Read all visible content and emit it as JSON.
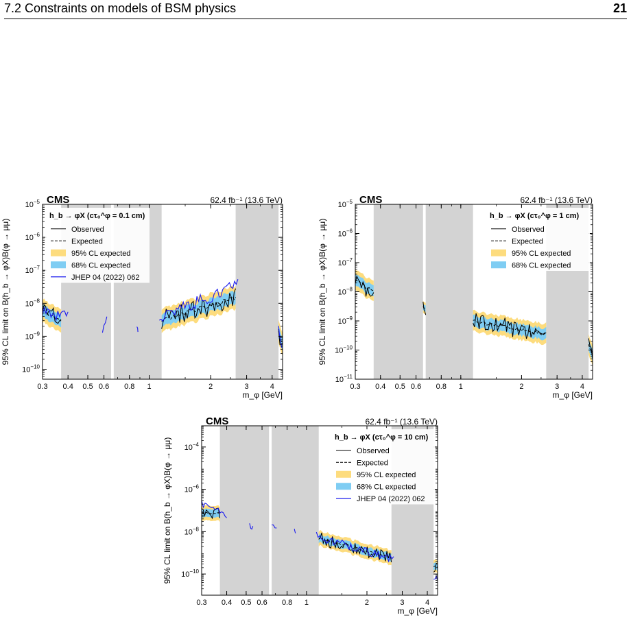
{
  "header": {
    "section": "7.2   Constraints on models of BSM physics",
    "page_number": "21"
  },
  "colors": {
    "band95": "#fddc7e",
    "band68": "#7fcdf3",
    "excluded": "#d3d3d3",
    "observed": "#000000",
    "expected": "#000000",
    "reference": "#1a1aee"
  },
  "chart_data": [
    {
      "type": "line",
      "experiment_label": "CMS",
      "lumi_label": "62.4 fb⁻¹ (13.6 TeV)",
      "xlabel": "m_φ [GeV]",
      "ylabel": "95% CL limit on B(h_b → φX)B(φ → μμ)",
      "xscale": "log",
      "yscale": "log",
      "xlim": [
        0.3,
        4.5
      ],
      "ylim": [
        5e-11,
        1e-05
      ],
      "x_ticks": [
        {
          "v": 0.3,
          "t": "0.3"
        },
        {
          "v": 0.4,
          "t": "0.4"
        },
        {
          "v": 0.5,
          "t": "0.5"
        },
        {
          "v": 0.6,
          "t": "0.6"
        },
        {
          "v": 0.8,
          "t": "0.8"
        },
        {
          "v": 1,
          "t": "1"
        },
        {
          "v": 2,
          "t": "2"
        },
        {
          "v": 3,
          "t": "3"
        },
        {
          "v": 4,
          "t": "4"
        }
      ],
      "y_ticks": [
        {
          "v": 1e-10,
          "e": "−10"
        },
        {
          "v": 1e-09,
          "e": "−9"
        },
        {
          "v": 1e-08,
          "e": "−8"
        },
        {
          "v": 1e-07,
          "e": "−7"
        },
        {
          "v": 1e-06,
          "e": "−6"
        },
        {
          "v": 1e-05,
          "e": "−5"
        }
      ],
      "excluded_regions": [
        [
          0.37,
          0.65
        ],
        [
          0.67,
          1.15
        ],
        [
          2.65,
          4.3
        ]
      ],
      "legend": {
        "placement": "top-left",
        "title": "h_b → φX (cτ₀^φ = 0.1 cm)",
        "entries": [
          {
            "kind": "solid",
            "label": "Observed"
          },
          {
            "kind": "dashed",
            "label": "Expected"
          },
          {
            "kind": "band95",
            "label": "95% CL expected"
          },
          {
            "kind": "band68",
            "label": "68% CL expected"
          },
          {
            "kind": "ref",
            "label": "JHEP 04 (2022) 062"
          }
        ]
      },
      "segments": [
        {
          "x0": 0.3,
          "x1": 0.37,
          "y0": 6e-09,
          "y1": 3e-09,
          "w": 0.35
        },
        {
          "x0": 1.15,
          "x1": 2.65,
          "y0": 3e-09,
          "y1": 1.5e-08,
          "w": 0.35
        },
        {
          "x0": 4.3,
          "x1": 4.5,
          "y0": 1.5e-09,
          "y1": 6e-10,
          "w": 0.35
        }
      ],
      "reference_segments": [
        {
          "x0": 0.3,
          "x1": 0.4,
          "y0": 6e-09,
          "y1": 3.5e-09,
          "w": 0.4
        },
        {
          "x0": 0.59,
          "x1": 0.62,
          "y0": 1.6e-09,
          "y1": 3e-09,
          "w": 0.3
        },
        {
          "x0": 0.87,
          "x1": 0.88,
          "y0": 2.1e-09,
          "y1": 1.5e-09,
          "w": 0.1
        },
        {
          "x0": 1.12,
          "x1": 2.72,
          "y0": 4e-09,
          "y1": 3.5e-08,
          "w": 0.4
        },
        {
          "x0": 4.3,
          "x1": 4.45,
          "y0": 2.5e-09,
          "y1": 5e-10,
          "w": 0.3
        }
      ]
    },
    {
      "type": "line",
      "experiment_label": "CMS",
      "lumi_label": "62.4 fb⁻¹ (13.6 TeV)",
      "xlabel": "m_φ [GeV]",
      "ylabel": "95% CL limit on B(h_b → φX)B(φ → μμ)",
      "xscale": "log",
      "yscale": "log",
      "xlim": [
        0.3,
        4.5
      ],
      "ylim": [
        1e-11,
        1e-05
      ],
      "x_ticks": [
        {
          "v": 0.3,
          "t": "0.3"
        },
        {
          "v": 0.4,
          "t": "0.4"
        },
        {
          "v": 0.5,
          "t": "0.5"
        },
        {
          "v": 0.6,
          "t": "0.6"
        },
        {
          "v": 0.8,
          "t": "0.8"
        },
        {
          "v": 1,
          "t": "1"
        },
        {
          "v": 2,
          "t": "2"
        },
        {
          "v": 3,
          "t": "3"
        },
        {
          "v": 4,
          "t": "4"
        }
      ],
      "y_ticks": [
        {
          "v": 1e-11,
          "e": "−11"
        },
        {
          "v": 1e-10,
          "e": "−10"
        },
        {
          "v": 1e-09,
          "e": "−9"
        },
        {
          "v": 1e-08,
          "e": "−8"
        },
        {
          "v": 1e-07,
          "e": "−7"
        },
        {
          "v": 1e-06,
          "e": "−6"
        },
        {
          "v": 1e-05,
          "e": "−5"
        }
      ],
      "excluded_regions": [
        [
          0.37,
          0.65
        ],
        [
          0.67,
          1.15
        ],
        [
          2.65,
          4.3
        ]
      ],
      "legend": {
        "placement": "top-right",
        "title": "h_b → φX (cτ₀^φ = 1 cm)",
        "entries": [
          {
            "kind": "solid",
            "label": "Observed"
          },
          {
            "kind": "dashed",
            "label": "Expected"
          },
          {
            "kind": "band95",
            "label": "95% CL expected"
          },
          {
            "kind": "band68",
            "label": "68% CL expected"
          }
        ]
      },
      "segments": [
        {
          "x0": 0.3,
          "x1": 0.37,
          "y0": 2.5e-08,
          "y1": 1e-08,
          "w": 0.35
        },
        {
          "x0": 0.65,
          "x1": 0.67,
          "y0": 3e-09,
          "y1": 3e-09,
          "w": 0.2
        },
        {
          "x0": 1.15,
          "x1": 2.65,
          "y0": 1e-09,
          "y1": 3.5e-10,
          "w": 0.35
        },
        {
          "x0": 4.3,
          "x1": 4.5,
          "y0": 1.5e-10,
          "y1": 6e-11,
          "w": 0.35
        }
      ],
      "reference_segments": []
    },
    {
      "type": "line",
      "experiment_label": "CMS",
      "lumi_label": "62.4 fb⁻¹ (13.6 TeV)",
      "xlabel": "m_φ [GeV]",
      "ylabel": "95% CL limit on B(h_b → φX)B(φ → μμ)",
      "xscale": "log",
      "yscale": "log",
      "xlim": [
        0.3,
        4.5
      ],
      "ylim": [
        1e-11,
        0.001
      ],
      "x_ticks": [
        {
          "v": 0.3,
          "t": "0.3"
        },
        {
          "v": 0.4,
          "t": "0.4"
        },
        {
          "v": 0.5,
          "t": "0.5"
        },
        {
          "v": 0.6,
          "t": "0.6"
        },
        {
          "v": 0.8,
          "t": "0.8"
        },
        {
          "v": 1,
          "t": "1"
        },
        {
          "v": 2,
          "t": "2"
        },
        {
          "v": 3,
          "t": "3"
        },
        {
          "v": 4,
          "t": "4"
        }
      ],
      "y_ticks": [
        {
          "v": 1e-10,
          "e": "−10"
        },
        {
          "v": 1e-08,
          "e": "−8"
        },
        {
          "v": 1e-06,
          "e": "−6"
        },
        {
          "v": 0.0001,
          "e": "−4"
        }
      ],
      "excluded_regions": [
        [
          0.37,
          0.65
        ],
        [
          0.67,
          1.15
        ],
        [
          2.65,
          4.3
        ]
      ],
      "legend": {
        "placement": "top-right",
        "title": "h_b → φX (cτ₀^φ = 10 cm)",
        "entries": [
          {
            "kind": "solid",
            "label": "Observed"
          },
          {
            "kind": "dashed",
            "label": "Expected"
          },
          {
            "kind": "band95",
            "label": "95% CL expected"
          },
          {
            "kind": "band68",
            "label": "68% CL expected"
          },
          {
            "kind": "ref",
            "label": "JHEP 04 (2022) 062"
          }
        ]
      },
      "segments": [
        {
          "x0": 0.3,
          "x1": 0.37,
          "y0": 8e-08,
          "y1": 7e-08,
          "w": 0.35
        },
        {
          "x0": 1.15,
          "x1": 2.65,
          "y0": 5e-09,
          "y1": 6e-10,
          "w": 0.35
        },
        {
          "x0": 4.3,
          "x1": 4.5,
          "y0": 2.5e-10,
          "y1": 2e-10,
          "w": 0.3
        }
      ],
      "reference_segments": [
        {
          "x0": 0.3,
          "x1": 0.4,
          "y0": 2e-07,
          "y1": 6e-08,
          "w": 0.4
        },
        {
          "x0": 0.52,
          "x1": 0.54,
          "y0": 2e-08,
          "y1": 1.5e-08,
          "w": 0.2
        },
        {
          "x0": 0.67,
          "x1": 0.71,
          "y0": 1.5e-08,
          "y1": 2e-08,
          "w": 0.3
        },
        {
          "x0": 0.87,
          "x1": 0.88,
          "y0": 1.2e-08,
          "y1": 9e-09,
          "w": 0.1
        },
        {
          "x0": 1.12,
          "x1": 2.72,
          "y0": 6e-09,
          "y1": 5e-10,
          "w": 0.4
        },
        {
          "x0": 4.3,
          "x1": 4.5,
          "y0": 8e-11,
          "y1": 5e-11,
          "w": 0.3
        }
      ]
    }
  ]
}
